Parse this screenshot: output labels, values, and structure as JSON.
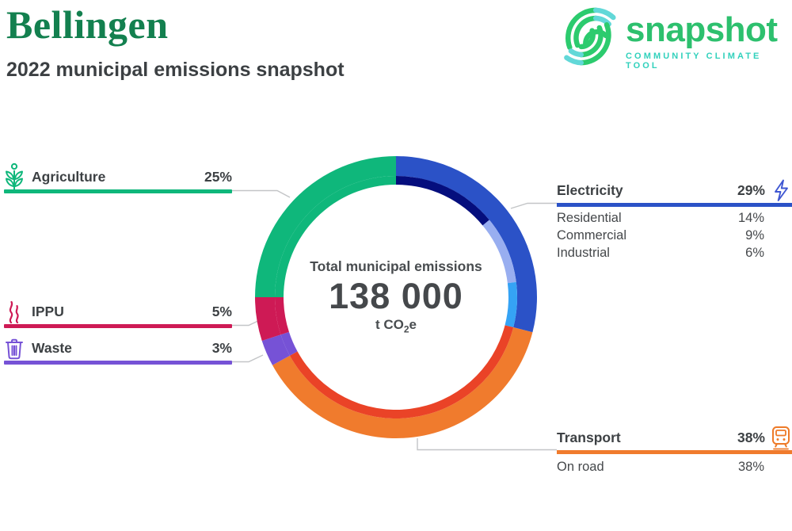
{
  "header": {
    "title": "Bellingen",
    "subtitle": "2022 municipal emissions snapshot"
  },
  "logo": {
    "name": "snapshot",
    "tagline": "COMMUNITY CLIMATE TOOL",
    "green": "#2dc06e",
    "teal": "#31d1bc"
  },
  "center": {
    "label": "Total municipal emissions",
    "value": "138 000",
    "unit_prefix": "t CO",
    "unit_sub": "2",
    "unit_suffix": "e"
  },
  "sectors": [
    {
      "name": "Electricity",
      "percent": "29%",
      "color": "#2b52c7",
      "icon": "lightning",
      "subsectors": [
        {
          "name": "Residential",
          "percent": "14%"
        },
        {
          "name": "Commercial",
          "percent": "9%"
        },
        {
          "name": "Industrial",
          "percent": "6%"
        }
      ]
    },
    {
      "name": "Transport",
      "percent": "38%",
      "color": "#f07b2d",
      "icon": "train",
      "subsectors": [
        {
          "name": "On road",
          "percent": "38%"
        }
      ]
    },
    {
      "name": "Agriculture",
      "percent": "25%",
      "color": "#0fb77b",
      "icon": "wheat",
      "subsectors": []
    },
    {
      "name": "IPPU",
      "percent": "5%",
      "color": "#ce1a55",
      "icon": "smoke",
      "subsectors": []
    },
    {
      "name": "Waste",
      "percent": "3%",
      "color": "#7652d6",
      "icon": "trash",
      "subsectors": []
    }
  ],
  "chart_data": {
    "type": "pie",
    "variant": "two-ring-donut",
    "title": "Total municipal emissions",
    "center_value": "138 000",
    "unit": "t CO2e",
    "start_angle_deg": 0,
    "direction": "clockwise",
    "outer_ring": [
      {
        "label": "Electricity",
        "value": 29,
        "color": "#2b52c7"
      },
      {
        "label": "Transport",
        "value": 38,
        "color": "#f07b2d"
      },
      {
        "label": "Waste",
        "value": 3,
        "color": "#7652d6"
      },
      {
        "label": "IPPU",
        "value": 5,
        "color": "#ce1a55"
      },
      {
        "label": "Agriculture",
        "value": 25,
        "color": "#0fb77b"
      }
    ],
    "inner_ring": [
      {
        "label": "Residential",
        "parent": "Electricity",
        "value": 14,
        "color": "#050e7d"
      },
      {
        "label": "Commercial",
        "parent": "Electricity",
        "value": 9,
        "color": "#98aef0"
      },
      {
        "label": "Industrial",
        "parent": "Electricity",
        "value": 6,
        "color": "#35a3f5"
      },
      {
        "label": "On road",
        "parent": "Transport",
        "value": 38,
        "color": "#ea4327"
      },
      {
        "label": "Waste",
        "parent": "Waste",
        "value": 3,
        "color": "#7652d6"
      },
      {
        "label": "IPPU",
        "parent": "IPPU",
        "value": 5,
        "color": "#ce1a55"
      },
      {
        "label": "Agriculture",
        "parent": "Agriculture",
        "value": 25,
        "color": "#0fb77b"
      }
    ]
  },
  "colors": {
    "title_green": "#13804f",
    "text_dark": "#3d4144",
    "leader_gray": "#c3c5c7"
  }
}
